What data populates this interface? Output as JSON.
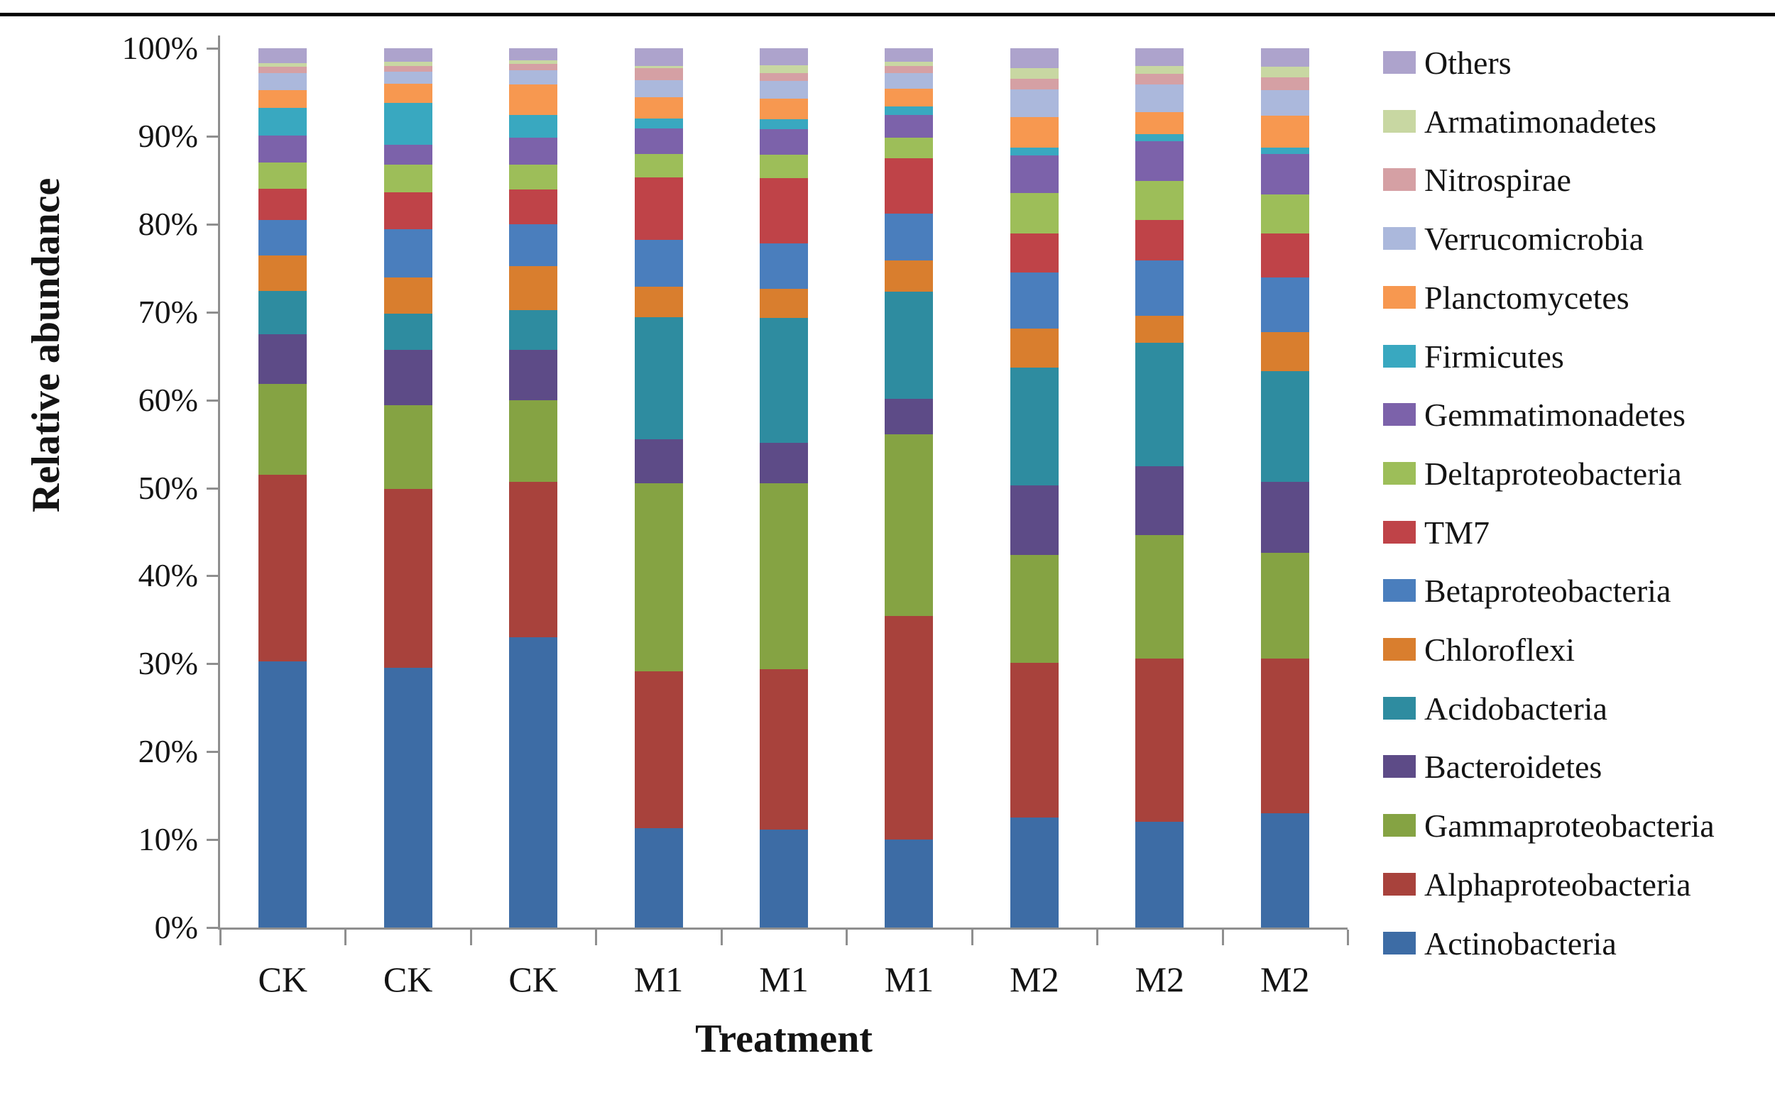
{
  "figure": {
    "ylabel": "Relative abundance",
    "xlabel": "Treatment"
  },
  "chart_data": {
    "type": "bar",
    "stacked": true,
    "title": "",
    "xlabel": "Treatment",
    "ylabel": "Relative abundance",
    "ylim": [
      0,
      100
    ],
    "y_tick_labels": [
      "0%",
      "10%",
      "20%",
      "30%",
      "40%",
      "50%",
      "60%",
      "70%",
      "80%",
      "90%",
      "100%"
    ],
    "grid": false,
    "legend_position": "right",
    "axis_color": "#8f8f8f",
    "categories": [
      "CK",
      "CK",
      "CK",
      "M1",
      "M1",
      "M1",
      "M2",
      "M2",
      "M2"
    ],
    "legend_order_top_to_bottom": [
      "Others",
      "Armatimonadetes",
      "Nitrospirae",
      "Verrucomicrobia",
      "Planctomycetes",
      "Firmicutes",
      "Gemmatimonadetes",
      "Deltaproteobacteria",
      "TM7",
      "Betaproteobacteria",
      "Chloroflexi",
      "Acidobacteria",
      "Bacteroidetes",
      "Gammaproteobacteria",
      "Alphaproteobacteria",
      "Actinobacteria"
    ],
    "series": [
      {
        "name": "Actinobacteria",
        "color": "#3d6ca5",
        "values": [
          30.3,
          29.5,
          33.0,
          11.3,
          11.1,
          10.0,
          12.5,
          12.0,
          13.0
        ]
      },
      {
        "name": "Alphaproteobacteria",
        "color": "#a8423c",
        "values": [
          21.2,
          20.4,
          17.7,
          17.8,
          18.3,
          25.4,
          17.6,
          18.6,
          17.6
        ]
      },
      {
        "name": "Gammaproteobacteria",
        "color": "#85a343",
        "values": [
          10.3,
          9.5,
          9.3,
          21.4,
          21.1,
          20.7,
          12.3,
          14.0,
          12.0
        ]
      },
      {
        "name": "Bacteroidetes",
        "color": "#5d4b87",
        "values": [
          5.7,
          6.3,
          5.7,
          5.0,
          4.6,
          4.0,
          7.9,
          7.9,
          8.1
        ]
      },
      {
        "name": "Acidobacteria",
        "color": "#2e8ca0",
        "values": [
          4.9,
          4.1,
          4.5,
          13.9,
          14.2,
          12.2,
          13.4,
          14.0,
          12.6
        ]
      },
      {
        "name": "Chloroflexi",
        "color": "#d97e2e",
        "values": [
          4.0,
          4.1,
          5.0,
          3.5,
          3.3,
          3.6,
          4.4,
          3.1,
          4.4
        ]
      },
      {
        "name": "Betaproteobacteria",
        "color": "#4a7ebd",
        "values": [
          4.1,
          5.5,
          4.8,
          5.3,
          5.2,
          5.3,
          6.4,
          6.3,
          6.2
        ]
      },
      {
        "name": "TM7",
        "color": "#bf4348",
        "values": [
          3.5,
          4.2,
          3.9,
          7.1,
          7.4,
          6.3,
          4.4,
          4.6,
          5.0
        ]
      },
      {
        "name": "Deltaproteobacteria",
        "color": "#9dbe59",
        "values": [
          3.0,
          3.2,
          2.9,
          2.7,
          2.7,
          2.3,
          4.6,
          4.4,
          4.5
        ]
      },
      {
        "name": "Gemmatimonadetes",
        "color": "#7c62aa",
        "values": [
          3.1,
          2.2,
          3.0,
          2.9,
          2.9,
          2.6,
          4.3,
          4.5,
          4.6
        ]
      },
      {
        "name": "Firmicutes",
        "color": "#39a8c0",
        "values": [
          3.1,
          4.8,
          2.6,
          1.1,
          1.1,
          1.0,
          0.9,
          0.8,
          0.7
        ]
      },
      {
        "name": "Planctomycetes",
        "color": "#f79850",
        "values": [
          2.0,
          2.2,
          3.5,
          2.4,
          2.4,
          2.0,
          3.5,
          2.5,
          3.6
        ]
      },
      {
        "name": "Verrucomicrobia",
        "color": "#abb8dc",
        "values": [
          2.0,
          1.3,
          1.6,
          2.0,
          2.0,
          1.8,
          3.1,
          3.2,
          2.9
        ]
      },
      {
        "name": "Nitrospirae",
        "color": "#d5a0a4",
        "values": [
          0.7,
          0.7,
          0.7,
          1.3,
          0.9,
          0.8,
          1.2,
          1.2,
          1.5
        ]
      },
      {
        "name": "Armatimonadetes",
        "color": "#c8d7a2",
        "values": [
          0.4,
          0.5,
          0.4,
          0.3,
          0.9,
          0.5,
          1.2,
          0.9,
          1.2
        ]
      },
      {
        "name": "Others",
        "color": "#ada3cc",
        "values": [
          1.7,
          1.5,
          1.4,
          2.0,
          1.9,
          1.5,
          2.3,
          2.0,
          2.1
        ]
      }
    ]
  }
}
